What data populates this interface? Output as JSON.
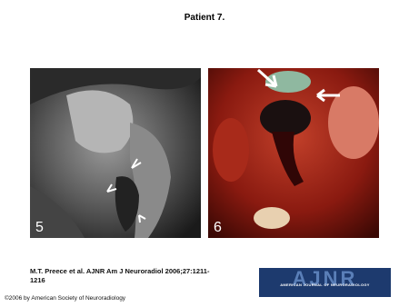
{
  "title": "Patient 7.",
  "figures": [
    {
      "label": "5"
    },
    {
      "label": "6"
    }
  ],
  "citation": "M.T. Preece et al. AJNR Am J Neuroradiol 2006;27:1211-1216",
  "logo": {
    "text": "AJNR",
    "subtitle": "AMERICAN JOURNAL OF NEURORADIOLOGY"
  },
  "copyright": "©2006 by American Society of Neuroradiology"
}
